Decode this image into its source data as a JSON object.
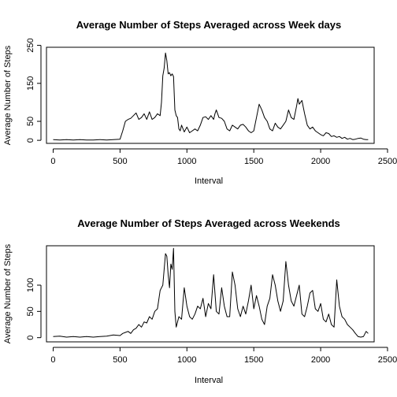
{
  "chart_data": [
    {
      "type": "line",
      "title": "Average Number of Steps Averaged across Week days",
      "xlabel": "Interval",
      "ylabel": "Average Number of Steps",
      "xlim": [
        -50,
        2400
      ],
      "ylim": [
        -8,
        245
      ],
      "xticks": [
        0,
        500,
        1000,
        1500,
        2000,
        2500
      ],
      "yticks": [
        0,
        50,
        150,
        250
      ],
      "x": [
        0,
        50,
        100,
        150,
        200,
        250,
        300,
        350,
        400,
        450,
        500,
        520,
        540,
        560,
        580,
        600,
        620,
        640,
        660,
        680,
        700,
        720,
        740,
        760,
        780,
        800,
        810,
        820,
        830,
        840,
        850,
        860,
        870,
        880,
        890,
        900,
        910,
        920,
        930,
        940,
        950,
        960,
        980,
        1000,
        1020,
        1040,
        1060,
        1080,
        1100,
        1120,
        1140,
        1160,
        1180,
        1200,
        1210,
        1220,
        1240,
        1260,
        1280,
        1300,
        1320,
        1340,
        1360,
        1380,
        1400,
        1420,
        1440,
        1460,
        1480,
        1500,
        1520,
        1540,
        1560,
        1580,
        1600,
        1620,
        1640,
        1660,
        1680,
        1700,
        1720,
        1740,
        1760,
        1780,
        1800,
        1820,
        1830,
        1840,
        1860,
        1880,
        1900,
        1920,
        1940,
        1960,
        1980,
        2000,
        2020,
        2040,
        2060,
        2080,
        2100,
        2120,
        2140,
        2160,
        2180,
        2200,
        2220,
        2240,
        2260,
        2280,
        2300,
        2320,
        2340,
        2355
      ],
      "y": [
        2,
        1,
        2,
        1,
        2,
        1,
        1,
        2,
        1,
        2,
        3,
        25,
        50,
        55,
        58,
        65,
        72,
        55,
        60,
        70,
        55,
        75,
        55,
        60,
        70,
        65,
        100,
        170,
        190,
        230,
        210,
        175,
        178,
        170,
        175,
        168,
        80,
        65,
        60,
        30,
        25,
        40,
        22,
        35,
        20,
        25,
        30,
        25,
        40,
        60,
        62,
        55,
        65,
        55,
        70,
        80,
        60,
        58,
        50,
        30,
        25,
        40,
        35,
        30,
        40,
        42,
        35,
        25,
        20,
        25,
        60,
        95,
        80,
        60,
        50,
        30,
        25,
        45,
        35,
        30,
        40,
        50,
        80,
        60,
        55,
        90,
        110,
        95,
        105,
        70,
        40,
        30,
        35,
        25,
        20,
        15,
        12,
        20,
        18,
        10,
        12,
        8,
        10,
        5,
        8,
        3,
        5,
        2,
        3,
        5,
        6,
        3,
        2,
        2
      ]
    },
    {
      "type": "line",
      "title": "Average Number of Steps Averaged across Weekends",
      "xlabel": "Interval",
      "ylabel": "Average Number of Steps",
      "xlim": [
        -50,
        2400
      ],
      "ylim": [
        -8,
        175
      ],
      "xticks": [
        0,
        500,
        1000,
        1500,
        2000,
        2500
      ],
      "yticks": [
        0,
        50,
        100
      ],
      "x": [
        0,
        50,
        100,
        150,
        200,
        250,
        300,
        350,
        400,
        450,
        500,
        520,
        540,
        560,
        580,
        600,
        620,
        640,
        660,
        680,
        700,
        720,
        740,
        760,
        780,
        800,
        820,
        840,
        850,
        860,
        870,
        880,
        890,
        900,
        910,
        920,
        940,
        960,
        980,
        1000,
        1020,
        1040,
        1060,
        1080,
        1100,
        1120,
        1140,
        1160,
        1180,
        1200,
        1220,
        1240,
        1260,
        1280,
        1300,
        1320,
        1340,
        1360,
        1380,
        1400,
        1420,
        1440,
        1460,
        1480,
        1500,
        1520,
        1540,
        1560,
        1580,
        1600,
        1620,
        1640,
        1660,
        1680,
        1700,
        1720,
        1740,
        1760,
        1780,
        1800,
        1820,
        1840,
        1860,
        1880,
        1900,
        1920,
        1940,
        1960,
        1980,
        2000,
        2020,
        2040,
        2060,
        2080,
        2100,
        2120,
        2140,
        2160,
        2180,
        2200,
        2220,
        2240,
        2260,
        2280,
        2300,
        2320,
        2340,
        2355
      ],
      "y": [
        2,
        3,
        1,
        2,
        1,
        2,
        1,
        2,
        3,
        5,
        4,
        8,
        10,
        12,
        8,
        15,
        18,
        25,
        20,
        30,
        28,
        40,
        35,
        50,
        55,
        90,
        100,
        160,
        155,
        120,
        95,
        140,
        130,
        170,
        50,
        20,
        40,
        35,
        95,
        60,
        40,
        35,
        45,
        60,
        55,
        75,
        40,
        65,
        55,
        120,
        50,
        45,
        95,
        60,
        40,
        40,
        125,
        100,
        55,
        40,
        60,
        45,
        70,
        100,
        55,
        80,
        60,
        35,
        25,
        60,
        75,
        120,
        100,
        70,
        50,
        70,
        145,
        100,
        70,
        60,
        80,
        100,
        45,
        40,
        60,
        85,
        90,
        55,
        50,
        65,
        35,
        30,
        45,
        25,
        20,
        110,
        60,
        40,
        35,
        25,
        20,
        15,
        8,
        2,
        1,
        2,
        12,
        8
      ]
    }
  ]
}
